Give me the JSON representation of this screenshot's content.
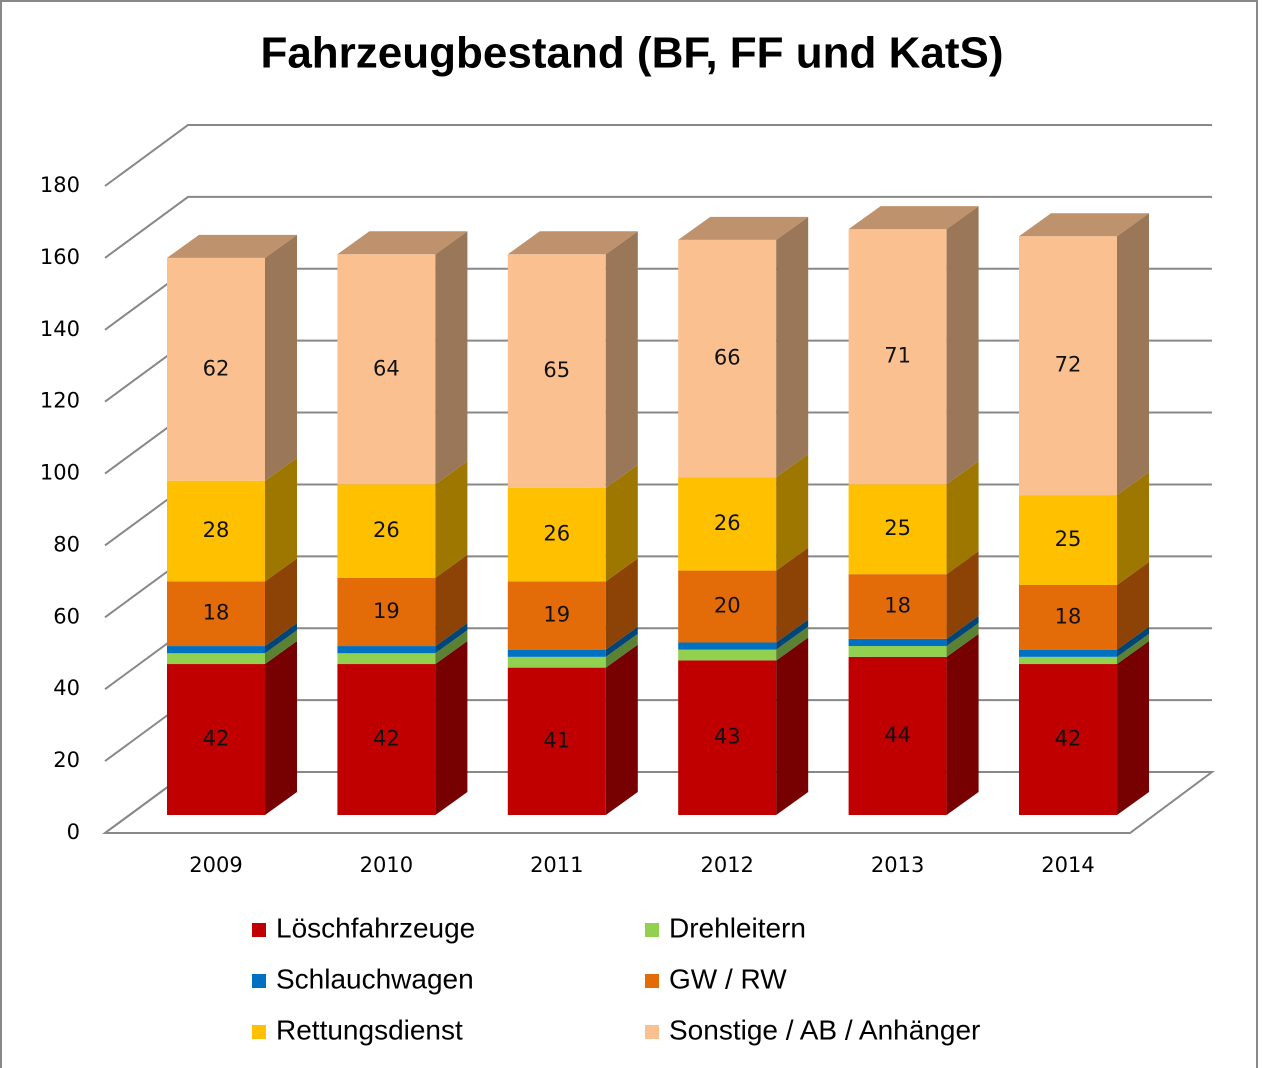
{
  "chart_data": {
    "type": "bar3d_stacked",
    "title": "Fahrzeugbestand (BF, FF und KatS)",
    "categories": [
      "2009",
      "2010",
      "2011",
      "2012",
      "2013",
      "2014"
    ],
    "series": [
      {
        "name": "Löschfahrzeuge",
        "color": "#c00000",
        "values": [
          42,
          42,
          41,
          43,
          44,
          42
        ]
      },
      {
        "name": "Drehleitern",
        "color": "#92d050",
        "values": [
          3,
          3,
          3,
          3,
          3,
          2
        ]
      },
      {
        "name": "Schlauchwagen",
        "color": "#0070c0",
        "values": [
          2,
          2,
          2,
          2,
          2,
          2
        ]
      },
      {
        "name": "GW / RW",
        "color": "#e36c09",
        "values": [
          18,
          19,
          19,
          20,
          18,
          18
        ]
      },
      {
        "name": "Rettungsdienst",
        "color": "#ffc000",
        "values": [
          28,
          26,
          26,
          26,
          25,
          25
        ]
      },
      {
        "name": "Sonstige / AB / Anhänger",
        "color": "#fac090",
        "values": [
          62,
          64,
          65,
          66,
          71,
          72
        ]
      }
    ],
    "ylim": [
      0,
      180
    ],
    "yticks": [
      0,
      20,
      40,
      60,
      80,
      100,
      120,
      140,
      160,
      180
    ],
    "grid": true,
    "legend": "bottom"
  }
}
